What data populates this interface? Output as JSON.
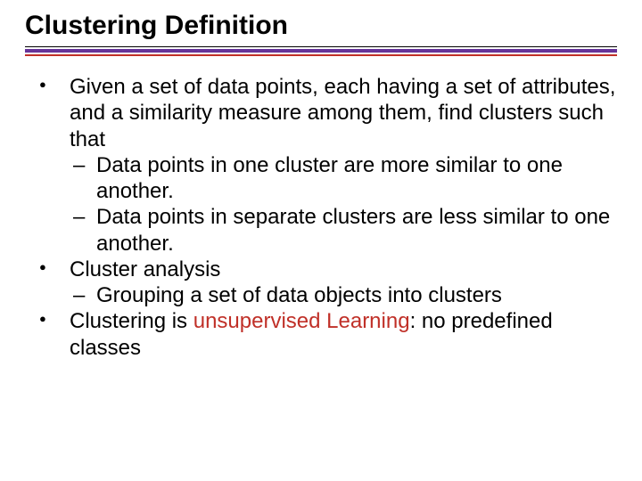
{
  "title": "Clustering Definition",
  "colors": {
    "rule_top": "#000000",
    "rule_purple": "#663399",
    "rule_red": "#c03028",
    "highlight": "#c03028",
    "text": "#000000",
    "background": "#ffffff"
  },
  "typography": {
    "title_font": "Verdana",
    "title_size_pt": 22,
    "title_weight": "bold",
    "body_font": "Arial",
    "body_size_pt": 18
  },
  "items": [
    {
      "text": "Given a set of data points, each having a set of attributes, and a similarity measure among them, find clusters such that",
      "sub": [
        "Data points in one cluster are more similar to one another.",
        "Data points in separate clusters are less similar to one another."
      ]
    },
    {
      "text": "Cluster analysis",
      "sub": [
        "Grouping a set of data objects into clusters"
      ]
    },
    {
      "text_pre": "Clustering is ",
      "text_hl": "unsupervised Learning",
      "text_post": ": no predefined classes",
      "sub": []
    }
  ]
}
